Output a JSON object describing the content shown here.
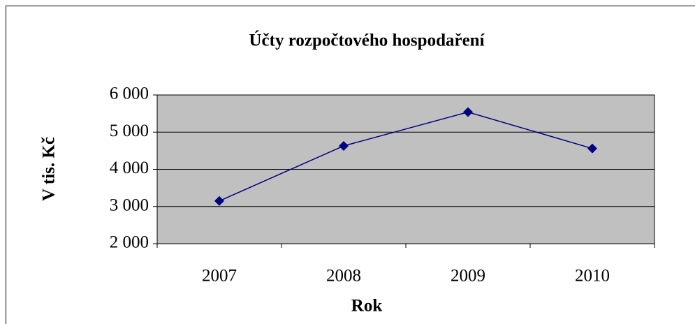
{
  "chart_data": {
    "type": "line",
    "title": "Účty rozpočtového hospodaření",
    "xlabel": "Rok",
    "ylabel": "V tis. Kč",
    "categories": [
      "2007",
      "2008",
      "2009",
      "2010"
    ],
    "series": [
      {
        "name": "Účty rozpočtového hospodaření",
        "color": "#000080",
        "values": [
          3150,
          4630,
          5540,
          4560
        ]
      }
    ],
    "ylim": [
      2000,
      6000
    ],
    "yticks": [
      {
        "value": 2000,
        "label": "2 000"
      },
      {
        "value": 3000,
        "label": "3 000"
      },
      {
        "value": 4000,
        "label": "4 000"
      },
      {
        "value": 5000,
        "label": "5 000"
      },
      {
        "value": 6000,
        "label": "6 000"
      }
    ],
    "grid": true,
    "legend": false
  }
}
